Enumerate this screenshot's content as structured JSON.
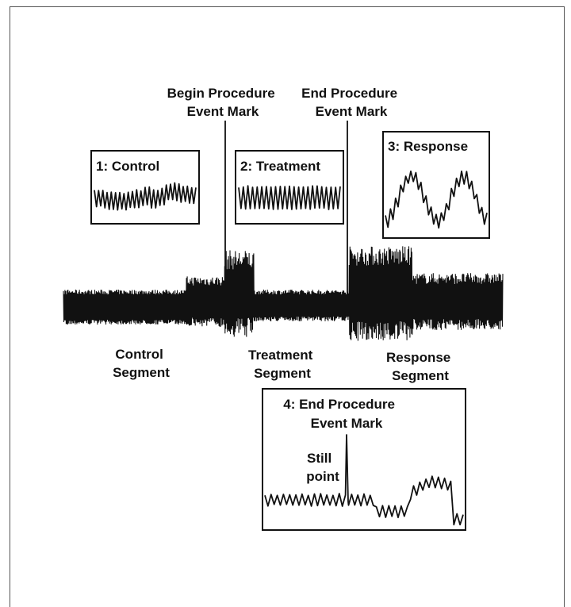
{
  "labels": {
    "begin_mark": [
      "Begin Procedure",
      "Event Mark"
    ],
    "end_mark": [
      "End Procedure",
      "Event Mark"
    ],
    "control_segment": [
      "Control",
      "Segment"
    ],
    "treatment_segment": [
      "Treatment",
      "Segment"
    ],
    "response_segment": [
      "Response",
      "Segment"
    ]
  },
  "insets": {
    "control": {
      "title": "1: Control"
    },
    "treatment": {
      "title": "2: Treatment"
    },
    "response": {
      "title": "3: Response"
    },
    "end_procedure": {
      "title": [
        "4: End Procedure",
        "Event Mark"
      ],
      "still_point": [
        "Still",
        "point"
      ]
    }
  }
}
